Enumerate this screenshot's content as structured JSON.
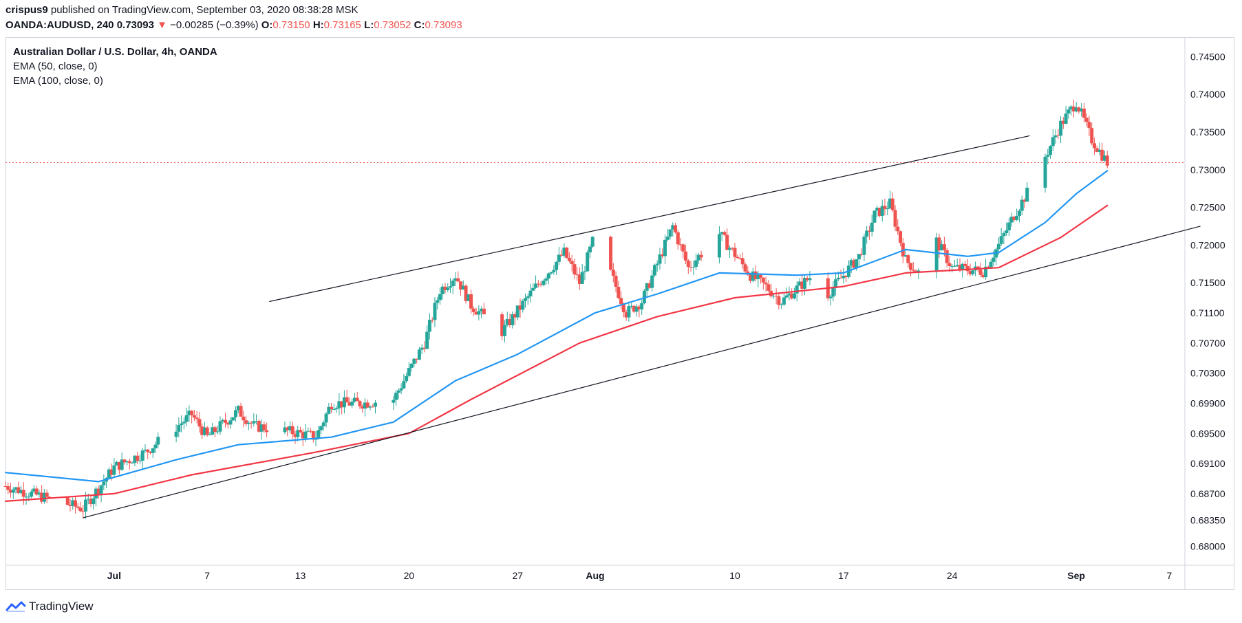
{
  "header": {
    "author": "crispus9",
    "published_text": "published on TradingView.com, September 03, 2020 08:38:28 MSK",
    "symbol": "OANDA:AUDUSD, 240",
    "last": "0.73093",
    "change_arrow": "▼",
    "change": "−0.00285 (−0.39%)",
    "o_label": "O:",
    "o_value": "0.73150",
    "h_label": "H:",
    "h_value": "0.73165",
    "l_label": "L:",
    "l_value": "0.73052",
    "c_label": "C:",
    "c_value": "0.73093"
  },
  "legend": {
    "title": "Australian Dollar / U.S. Dollar, 4h, OANDA",
    "ema50": "EMA (50, close, 0)",
    "ema100": "EMA (100, close, 0)"
  },
  "footer": {
    "brand": "TradingView",
    "logo_icon": "tradingview-logo-icon"
  },
  "chart_data": {
    "type": "candlestick",
    "title": "Australian Dollar / U.S. Dollar, 4h, OANDA",
    "ylim": [
      0.6775,
      0.7475
    ],
    "y_ticks": [
      0.745,
      0.74,
      0.735,
      0.73,
      0.725,
      0.72,
      0.715,
      0.711,
      0.707,
      0.703,
      0.699,
      0.695,
      0.691,
      0.687,
      0.6835,
      0.68
    ],
    "y_tick_labels": [
      "0.74500",
      "0.74000",
      "0.73500",
      "0.73000",
      "0.72500",
      "0.72000",
      "0.71500",
      "0.71100",
      "0.70700",
      "0.70300",
      "0.69900",
      "0.69500",
      "0.69100",
      "0.68700",
      "0.68350",
      "0.68000"
    ],
    "x_range_days": [
      "2020-06-24",
      "2020-09-08"
    ],
    "x_ticks": [
      {
        "label": "Jul",
        "date": "2020-07-01",
        "bold": true
      },
      {
        "label": "7",
        "date": "2020-07-07",
        "bold": false
      },
      {
        "label": "13",
        "date": "2020-07-13",
        "bold": false
      },
      {
        "label": "20",
        "date": "2020-07-20",
        "bold": false
      },
      {
        "label": "27",
        "date": "2020-07-27",
        "bold": false
      },
      {
        "label": "Aug",
        "date": "2020-08-01",
        "bold": true
      },
      {
        "label": "10",
        "date": "2020-08-10",
        "bold": false
      },
      {
        "label": "17",
        "date": "2020-08-17",
        "bold": false
      },
      {
        "label": "24",
        "date": "2020-08-24",
        "bold": false
      },
      {
        "label": "Sep",
        "date": "2020-09-01",
        "bold": true
      },
      {
        "label": "7",
        "date": "2020-09-07",
        "bold": false
      }
    ],
    "last_price": 0.73093,
    "price_anchors": [
      [
        "2020-06-24",
        0.688
      ],
      [
        "2020-06-29",
        0.685
      ],
      [
        "2020-07-01",
        0.6905
      ],
      [
        "2020-07-03",
        0.6925
      ],
      [
        "2020-07-06",
        0.6975
      ],
      [
        "2020-07-07",
        0.6945
      ],
      [
        "2020-07-09",
        0.698
      ],
      [
        "2020-07-10",
        0.696
      ],
      [
        "2020-07-13",
        0.695
      ],
      [
        "2020-07-14",
        0.6945
      ],
      [
        "2020-07-15",
        0.699
      ],
      [
        "2020-07-17",
        0.699
      ],
      [
        "2020-07-19",
        0.6995
      ],
      [
        "2020-07-21",
        0.707
      ],
      [
        "2020-07-22",
        0.714
      ],
      [
        "2020-07-23",
        0.716
      ],
      [
        "2020-07-24",
        0.712
      ],
      [
        "2020-07-26",
        0.7085
      ],
      [
        "2020-07-28",
        0.714
      ],
      [
        "2020-07-30",
        0.719
      ],
      [
        "2020-07-31",
        0.715
      ],
      [
        "2020-08-01",
        0.7215
      ],
      [
        "2020-08-03",
        0.711
      ],
      [
        "2020-08-04",
        0.7125
      ],
      [
        "2020-08-06",
        0.7225
      ],
      [
        "2020-08-07",
        0.717
      ],
      [
        "2020-08-09",
        0.7215
      ],
      [
        "2020-08-11",
        0.716
      ],
      [
        "2020-08-12",
        0.7145
      ],
      [
        "2020-08-13",
        0.7125
      ],
      [
        "2020-08-15",
        0.716
      ],
      [
        "2020-08-16",
        0.7135
      ],
      [
        "2020-08-18",
        0.7185
      ],
      [
        "2020-08-19",
        0.724
      ],
      [
        "2020-08-20",
        0.7255
      ],
      [
        "2020-08-21",
        0.718
      ],
      [
        "2020-08-22",
        0.716
      ],
      [
        "2020-08-23",
        0.7205
      ],
      [
        "2020-08-24",
        0.717
      ],
      [
        "2020-08-26",
        0.7165
      ],
      [
        "2020-08-27",
        0.72
      ],
      [
        "2020-08-28",
        0.724
      ],
      [
        "2020-08-29",
        0.7275
      ],
      [
        "2020-08-31",
        0.736
      ],
      [
        "2020-09-01",
        0.739
      ],
      [
        "2020-09-02",
        0.734
      ],
      [
        "2020-09-03",
        0.73093
      ]
    ],
    "ema50_anchors": [
      [
        "2020-06-24",
        0.6898
      ],
      [
        "2020-06-30",
        0.6886
      ],
      [
        "2020-07-05",
        0.6915
      ],
      [
        "2020-07-09",
        0.6935
      ],
      [
        "2020-07-15",
        0.6945
      ],
      [
        "2020-07-19",
        0.6965
      ],
      [
        "2020-07-23",
        0.702
      ],
      [
        "2020-07-27",
        0.7055
      ],
      [
        "2020-08-01",
        0.711
      ],
      [
        "2020-08-05",
        0.7135
      ],
      [
        "2020-08-09",
        0.7163
      ],
      [
        "2020-08-14",
        0.716
      ],
      [
        "2020-08-17",
        0.7163
      ],
      [
        "2020-08-21",
        0.7194
      ],
      [
        "2020-08-25",
        0.7185
      ],
      [
        "2020-08-27",
        0.719
      ],
      [
        "2020-08-30",
        0.723
      ],
      [
        "2020-09-01",
        0.7268
      ],
      [
        "2020-09-03",
        0.72985
      ]
    ],
    "ema100_anchors": [
      [
        "2020-06-24",
        0.686
      ],
      [
        "2020-07-01",
        0.687
      ],
      [
        "2020-07-06",
        0.6895
      ],
      [
        "2020-07-14",
        0.6925
      ],
      [
        "2020-07-20",
        0.695
      ],
      [
        "2020-07-24",
        0.6995
      ],
      [
        "2020-07-31",
        0.707
      ],
      [
        "2020-08-05",
        0.7105
      ],
      [
        "2020-08-10",
        0.713
      ],
      [
        "2020-08-17",
        0.7145
      ],
      [
        "2020-08-21",
        0.7163
      ],
      [
        "2020-08-27",
        0.717
      ],
      [
        "2020-08-31",
        0.721
      ],
      [
        "2020-09-03",
        0.72525
      ]
    ],
    "trendlines": [
      {
        "name": "upper-channel",
        "from": [
          "2020-07-11",
          0.7125
        ],
        "to": [
          "2020-08-29",
          0.7345
        ]
      },
      {
        "name": "lower-support",
        "from": [
          "2020-06-29",
          0.6838
        ],
        "to": [
          "2020-09-09",
          0.7225
        ]
      }
    ],
    "colors": {
      "up": "#26a69a",
      "down": "#ef5350",
      "ema50": "#2196f3",
      "ema100": "#f23645",
      "trendline": "#131722",
      "price_line": "#ef5350",
      "grid": "#e0e3eb",
      "axis_text": "#131722"
    }
  }
}
